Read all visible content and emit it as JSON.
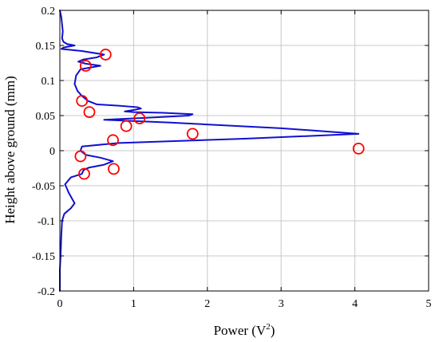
{
  "chart_data": {
    "type": "line",
    "title": "",
    "xlabel": "Power (V",
    "xlabel_superscript": "2",
    "xlabel_suffix": ")",
    "ylabel": "Height above ground (mm)",
    "xlim": [
      0,
      5
    ],
    "ylim": [
      -0.2,
      0.2
    ],
    "x_ticks": [
      0,
      1,
      2,
      3,
      4,
      5
    ],
    "x_tick_labels": [
      "0",
      "1",
      "2",
      "3",
      "4",
      "5"
    ],
    "y_ticks": [
      -0.2,
      -0.15,
      -0.1,
      -0.05,
      0,
      0.05,
      0.1,
      0.15,
      0.2
    ],
    "y_tick_labels": [
      "-0.2",
      "-0.15",
      "-0.1",
      "-0.05",
      "0",
      "0.05",
      "0.1",
      "0.15",
      "0.2"
    ],
    "grid": true,
    "colors": {
      "curve": "#1010d0",
      "markers": "#ff0000",
      "grid": "#c8c8c8",
      "axes": "#000000"
    },
    "series": [
      {
        "x": [
          0.0,
          0.02,
          0.04,
          0.03,
          0.05,
          0.1,
          0.2,
          0.05,
          0.02,
          0.3,
          0.6,
          0.5,
          0.32,
          0.25,
          0.35,
          0.55,
          0.28,
          0.22,
          0.2,
          0.24,
          0.3,
          0.38,
          0.5,
          0.8,
          1.05,
          1.1,
          1.0,
          0.88,
          1.0,
          1.4,
          1.8,
          1.75,
          1.2,
          0.8,
          0.6,
          1.5,
          3.0,
          4.05,
          2.5,
          0.8,
          0.3,
          0.28,
          0.35,
          0.55,
          0.72,
          0.6,
          0.5,
          0.4,
          0.35,
          0.32,
          0.3,
          0.15,
          0.07,
          0.1,
          0.12,
          0.2,
          0.15,
          0.06,
          0.03,
          0.02,
          0.01,
          0.0,
          0.0
        ],
        "y": [
          0.2,
          0.19,
          0.17,
          0.16,
          0.155,
          0.152,
          0.15,
          0.147,
          0.145,
          0.142,
          0.137,
          0.133,
          0.13,
          0.127,
          0.124,
          0.121,
          0.116,
          0.107,
          0.095,
          0.085,
          0.078,
          0.071,
          0.066,
          0.064,
          0.062,
          0.06,
          0.058,
          0.056,
          0.055,
          0.054,
          0.052,
          0.05,
          0.047,
          0.045,
          0.044,
          0.04,
          0.032,
          0.024,
          0.017,
          0.011,
          0.006,
          0.0,
          -0.006,
          -0.01,
          -0.015,
          -0.02,
          -0.022,
          -0.024,
          -0.026,
          -0.028,
          -0.033,
          -0.038,
          -0.048,
          -0.055,
          -0.06,
          -0.075,
          -0.082,
          -0.09,
          -0.1,
          -0.12,
          -0.15,
          -0.17,
          -0.2
        ]
      }
    ],
    "markers": {
      "x": [
        0.62,
        0.35,
        0.3,
        0.4,
        1.08,
        0.9,
        1.8,
        0.72,
        4.05,
        0.28,
        0.73,
        0.33
      ],
      "y": [
        0.137,
        0.121,
        0.071,
        0.055,
        0.046,
        0.035,
        0.024,
        0.015,
        0.003,
        -0.008,
        -0.026,
        -0.033
      ]
    }
  }
}
